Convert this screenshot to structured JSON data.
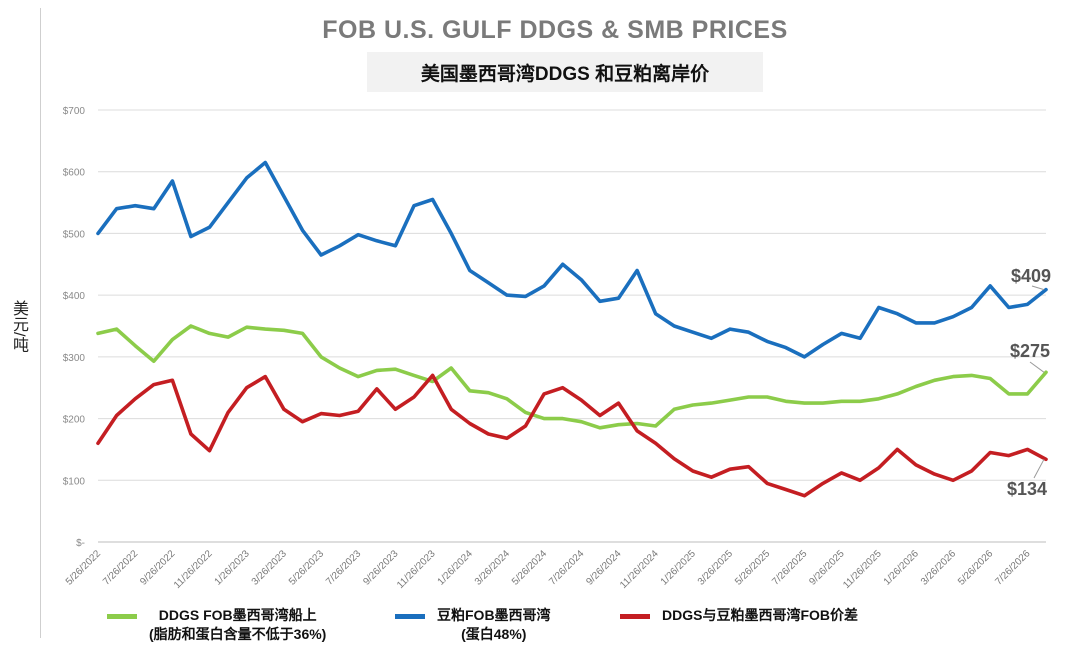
{
  "title_en": "FOB U.S. GULF DDGS & SMB PRICES",
  "title_cn": "美国墨西哥湾DDGS 和豆粕离岸价",
  "y_unit_label": "美元/吨",
  "legend": [
    {
      "label_line1": "DDGS FOB墨西哥湾船上",
      "label_line2": "(脂肪和蛋白含量不低于36%)",
      "color": "#8ccc4a"
    },
    {
      "label_line1": "豆粕FOB墨西哥湾",
      "label_line2": "(蛋白48%)",
      "color": "#1a6fbe"
    },
    {
      "label_line1": "DDGS与豆粕墨西哥湾FOB价差",
      "label_line2": "",
      "color": "#c41e22"
    }
  ],
  "chart_data": {
    "type": "line",
    "title": "FOB U.S. GULF DDGS & SMB PRICES",
    "subtitle": "美国墨西哥湾DDGS 和豆粕离岸价",
    "ylabel": "美元/吨",
    "xlabel": "",
    "ylim": [
      0,
      700
    ],
    "y_ticks": [
      "$-",
      "$100",
      "$200",
      "$300",
      "$400",
      "$500",
      "$600",
      "$700"
    ],
    "x_ticks": [
      "5/26/2022",
      "7/26/2022",
      "9/26/2022",
      "11/26/2022",
      "1/26/2023",
      "3/26/2023",
      "5/26/2023",
      "7/26/2023",
      "9/26/2023",
      "11/26/2023",
      "1/26/2024",
      "3/26/2024",
      "5/26/2024",
      "7/26/2024",
      "9/26/2024",
      "11/26/2024",
      "1/26/2025",
      "3/26/2025",
      "5/26/2025",
      "7/26/2025",
      "9/26/2025",
      "11/26/2025",
      "1/26/2026",
      "3/26/2026",
      "5/26/2026",
      "7/26/2026"
    ],
    "x": [
      "5/26/2022",
      "6/26/2022",
      "7/26/2022",
      "8/26/2022",
      "9/26/2022",
      "10/26/2022",
      "11/26/2022",
      "12/26/2022",
      "1/26/2023",
      "2/26/2023",
      "3/26/2023",
      "4/26/2023",
      "5/26/2023",
      "6/26/2023",
      "7/26/2023",
      "8/26/2023",
      "9/26/2023",
      "10/26/2023",
      "11/26/2023",
      "12/26/2023",
      "1/26/2024",
      "2/26/2024",
      "3/26/2024",
      "4/26/2024",
      "5/26/2024",
      "6/26/2024",
      "7/26/2024",
      "8/26/2024",
      "9/26/2024",
      "10/26/2024",
      "11/26/2024",
      "12/26/2024",
      "1/26/2025",
      "2/26/2025",
      "3/26/2025",
      "4/26/2025",
      "5/26/2025",
      "6/26/2025",
      "7/26/2025",
      "8/26/2025",
      "9/26/2025",
      "10/26/2025",
      "11/26/2025",
      "12/26/2025",
      "1/26/2026",
      "2/26/2026",
      "3/26/2026",
      "4/26/2026",
      "5/26/2026",
      "6/26/2026",
      "7/26/2026",
      "8/26/2026"
    ],
    "series": [
      {
        "name": "DDGS FOB墨西哥湾船上",
        "color": "#8ccc4a",
        "values": [
          338,
          345,
          318,
          293,
          328,
          350,
          338,
          332,
          348,
          345,
          343,
          338,
          300,
          282,
          268,
          278,
          280,
          270,
          260,
          282,
          245,
          242,
          232,
          210,
          200,
          200,
          195,
          185,
          190,
          192,
          188,
          215,
          222,
          225,
          230,
          235,
          235,
          228,
          225,
          225,
          228,
          228,
          232,
          240,
          252,
          262,
          268,
          270,
          265,
          240,
          240,
          275
        ]
      },
      {
        "name": "豆粕FOB墨西哥湾",
        "color": "#1a6fbe",
        "values": [
          500,
          540,
          545,
          540,
          585,
          495,
          510,
          550,
          590,
          615,
          560,
          505,
          465,
          480,
          498,
          488,
          480,
          545,
          555,
          500,
          440,
          420,
          400,
          398,
          415,
          450,
          425,
          390,
          395,
          440,
          370,
          350,
          340,
          330,
          345,
          340,
          325,
          315,
          300,
          320,
          338,
          330,
          380,
          370,
          355,
          355,
          365,
          380,
          415,
          380,
          385,
          409
        ]
      },
      {
        "name": "DDGS与豆粕墨西哥湾FOB价差",
        "color": "#c41e22",
        "values": [
          160,
          205,
          232,
          255,
          262,
          175,
          148,
          210,
          250,
          268,
          215,
          195,
          208,
          205,
          212,
          248,
          215,
          235,
          270,
          215,
          192,
          175,
          168,
          188,
          240,
          250,
          230,
          205,
          225,
          180,
          160,
          135,
          115,
          105,
          118,
          122,
          95,
          85,
          75,
          95,
          112,
          100,
          120,
          150,
          125,
          110,
          100,
          115,
          145,
          140,
          150,
          134
        ]
      }
    ],
    "annotations": [
      "$409",
      "$275",
      "$134"
    ],
    "grid": "horizontal",
    "legend_position": "bottom"
  }
}
